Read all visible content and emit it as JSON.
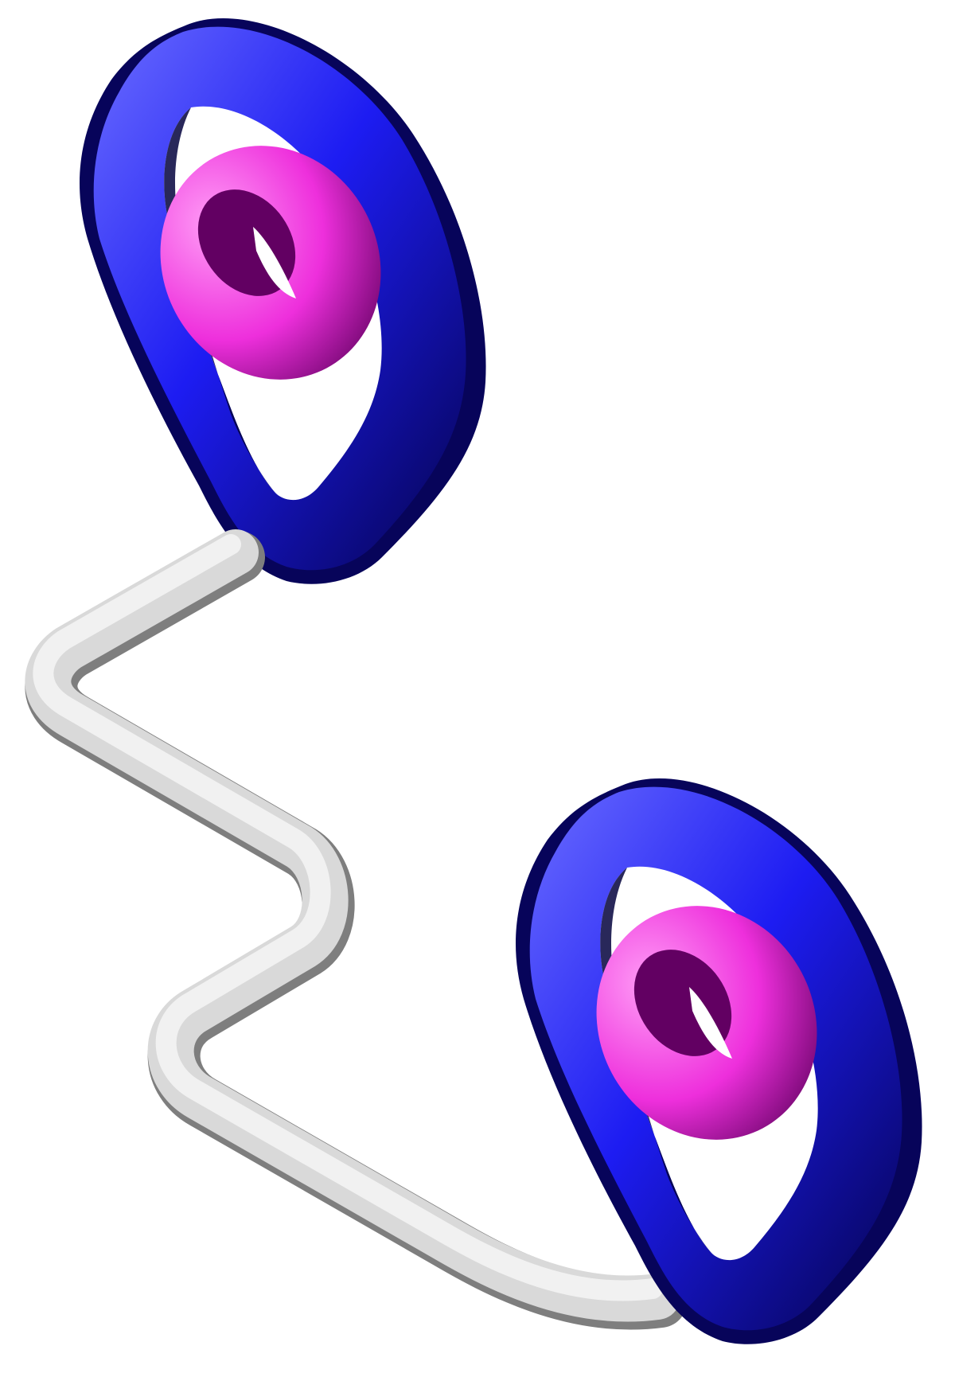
{
  "scene": {
    "background_color": "#ffffff",
    "colors": {
      "ring_highlight": "#6a6cff",
      "ring_mid": "#1d1cf2",
      "ring_shadow": "#05034f",
      "torus_highlight": "#ff9df6",
      "torus_mid": "#ee2fdc",
      "torus_shadow": "#5f005f",
      "tube_light": "#f1f1f1",
      "tube_mid": "#d9d9d9",
      "tube_shadow": "#7e7e7e"
    },
    "objects": [
      {
        "name": "outer-ring-top",
        "kind": "ring",
        "color_role": "blue"
      },
      {
        "name": "inner-torus-top",
        "kind": "torus",
        "color_role": "magenta"
      },
      {
        "name": "connecting-tube",
        "kind": "tube",
        "color_role": "gray"
      },
      {
        "name": "outer-ring-bottom",
        "kind": "ring",
        "color_role": "blue"
      },
      {
        "name": "inner-torus-bottom",
        "kind": "torus",
        "color_role": "magenta"
      }
    ]
  }
}
